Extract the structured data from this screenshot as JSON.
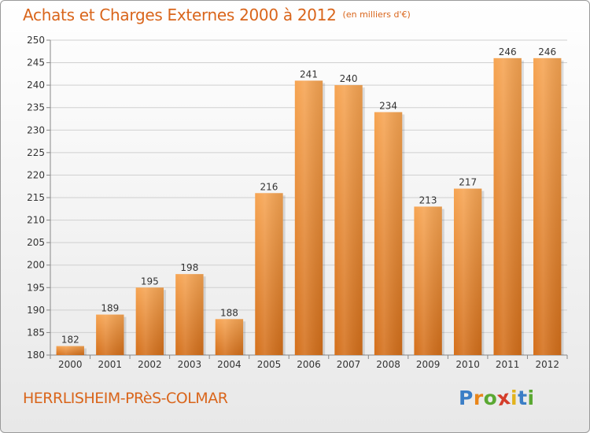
{
  "header": {
    "title": "Achats et Charges Externes 2000 à 2012",
    "unit": "(en milliers d'€)"
  },
  "footer": {
    "place": "HERRLISHEIM-PRèS-COLMAR",
    "logo_letters": [
      "P",
      "r",
      "o",
      "x",
      "i",
      "t",
      "i"
    ],
    "logo_colors": [
      "#3b7ec6",
      "#e9861a",
      "#5aa832",
      "#d43d2a",
      "#e2b31c",
      "#3b7ec6",
      "#5aa832"
    ]
  },
  "colors": {
    "bar_light": "#f6a452",
    "bar_dark": "#d46f1a",
    "title": "#d9651b",
    "grid": "#cfcfcf"
  },
  "chart_data": {
    "type": "bar",
    "title": "Achats et Charges Externes 2000 à 2012",
    "subtitle": "(en milliers d'€)",
    "categories": [
      "2000",
      "2001",
      "2002",
      "2003",
      "2004",
      "2005",
      "2006",
      "2007",
      "2008",
      "2009",
      "2010",
      "2011",
      "2012"
    ],
    "values": [
      182,
      189,
      195,
      198,
      188,
      216,
      241,
      240,
      234,
      213,
      217,
      246,
      246
    ],
    "ylim": [
      180,
      250
    ],
    "yticks": [
      180,
      185,
      190,
      195,
      200,
      205,
      210,
      215,
      220,
      225,
      230,
      235,
      240,
      245,
      250
    ],
    "grid": true,
    "xlabel": "",
    "ylabel": ""
  }
}
